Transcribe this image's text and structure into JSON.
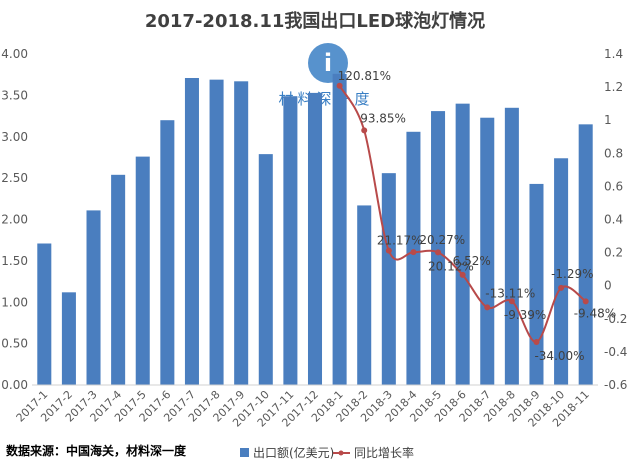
{
  "chart_data": {
    "type": "bar",
    "title": "2017-2018.11我国出口LED球泡灯情况",
    "categories": [
      "2017-1",
      "2017-2",
      "2017-3",
      "2017-4",
      "2017-5",
      "2017-6",
      "2017-7",
      "2017-8",
      "2017-9",
      "2017-10",
      "2017-11",
      "2017-12",
      "2018-1",
      "2018-2",
      "2018-3",
      "2018-4",
      "2018-5",
      "2018-6",
      "2018-7",
      "2018-8",
      "2018-9",
      "2018-10",
      "2018-11"
    ],
    "series": [
      {
        "name": "出口额(亿美元)",
        "type": "bar",
        "axis": "left",
        "color": "#4a7ebf",
        "values": [
          1.71,
          1.12,
          2.11,
          2.54,
          2.76,
          3.2,
          3.71,
          3.69,
          3.67,
          2.79,
          3.49,
          3.53,
          3.76,
          2.17,
          2.56,
          3.06,
          3.31,
          3.4,
          3.23,
          3.35,
          2.43,
          2.74,
          3.15
        ]
      },
      {
        "name": "同比增长率",
        "type": "line",
        "axis": "right",
        "color": "#b84a4a",
        "values": [
          null,
          null,
          null,
          null,
          null,
          null,
          null,
          null,
          null,
          null,
          null,
          null,
          1.2081,
          0.9385,
          0.2117,
          0.2027,
          0.2012,
          0.0652,
          -0.1311,
          -0.0939,
          -0.34,
          -0.0129,
          -0.0948
        ],
        "labels": [
          "",
          "",
          "",
          "",
          "",
          "",
          "",
          "",
          "",
          "",
          "",
          "",
          "120.81%",
          "93.85%",
          "21.17%",
          "20.27%",
          "20.12%",
          "6.52%",
          "-13.11%",
          "-9.39%",
          "-34.00%",
          "-1.29%",
          "-9.48%"
        ]
      }
    ],
    "y_left": {
      "min": 0,
      "max": 4,
      "ticks": [
        "0.00",
        "0.50",
        "1.00",
        "1.50",
        "2.00",
        "2.50",
        "3.00",
        "3.50",
        "4.00"
      ]
    },
    "y_right": {
      "min": -0.6,
      "max": 1.4,
      "ticks": [
        "-0.6",
        "-0.4",
        "-0.2",
        "0",
        "0.2",
        "0.4",
        "0.6",
        "0.8",
        "1",
        "1.2",
        "1.4"
      ]
    },
    "grid": false,
    "legend_position": "bottom"
  },
  "source_note": "数据来源：中国海关，材料深一度",
  "watermark": "材料深一度",
  "colors": {
    "bar": "#4a7ebf",
    "line": "#b84a4a"
  }
}
